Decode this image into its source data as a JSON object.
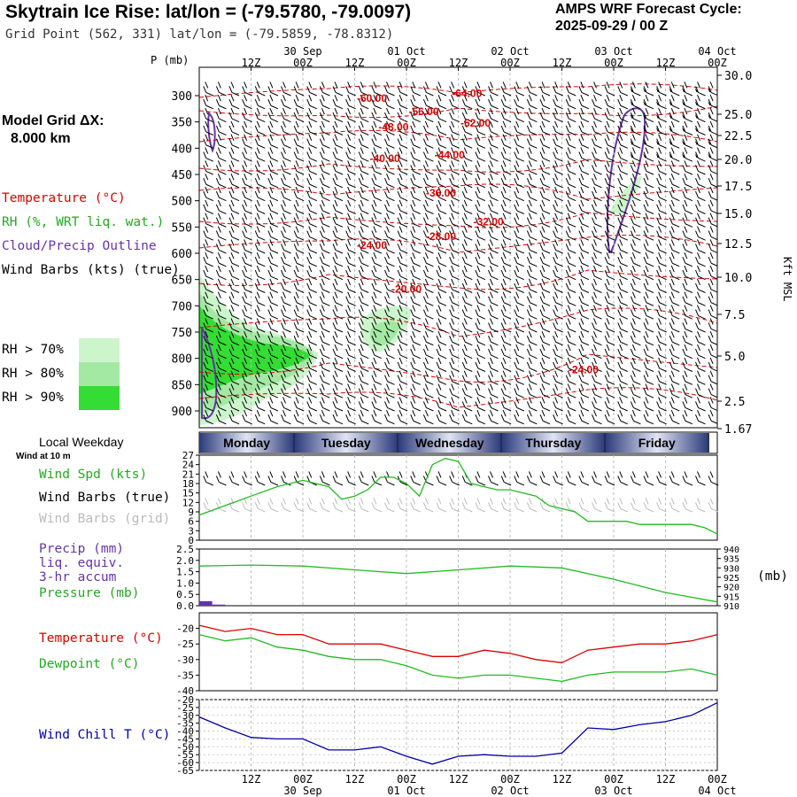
{
  "header": {
    "title": "Skytrain Ice Rise:  lat/lon = (-79.5780, -79.0097)",
    "grid_point": "Grid Point (562, 331) lat/lon = (-79.5859, -78.8312)",
    "forecast_cycle_label": "AMPS WRF Forecast Cycle:",
    "forecast_cycle_value": "2025-09-29 / 00  Z"
  },
  "colors": {
    "temperature": "#dd0000",
    "rh_green": "#22bb22",
    "cloud_outline": "#6633aa",
    "wind_chill": "#0000aa",
    "day_bar_dark": "#2b3a7a",
    "day_bar_light": "#e0e4f4",
    "rh70": "#ccf5cc",
    "rh80": "#a3e8a3",
    "rh90": "#33dd33"
  },
  "legend": {
    "model_grid_label": "Model Grid ΔX:",
    "model_grid_value": "8.000 km",
    "temperature": "Temperature (°C)",
    "rh": "RH (%, WRT liq. wat.)",
    "cloud": "Cloud/Precip Outline",
    "wind_barbs": "Wind Barbs (kts) (true)",
    "rh_levels": [
      "RH > 70%",
      "RH > 80%",
      "RH > 90%"
    ],
    "local_weekday": "Local Weekday",
    "wind_at_10m": "Wind at 10 m",
    "wind_spd": "Wind Spd (kts)",
    "wind_barbs_true": "Wind Barbs (true)",
    "wind_barbs_grid": "Wind Barbs (grid)",
    "precip": "Precip (mm)",
    "precip_line2": "liq. equiv.",
    "precip_line3": "3-hr accum",
    "pressure": "Pressure (mb)",
    "pressure_unit": "(mb)",
    "temp2": "Temperature (°C)",
    "dewpoint": "Dewpoint (°C)",
    "wind_chill": "Wind Chill T (°C)"
  },
  "chart_data": [
    {
      "type": "line",
      "name": "time_height_section",
      "ylabel_left": "P (mb)",
      "ylabel_right": "Kft MSL",
      "pressure_ticks": [
        "300",
        "350",
        "400",
        "450",
        "500",
        "550",
        "600",
        "650",
        "700",
        "750",
        "800",
        "850",
        "900"
      ],
      "height_ticks": [
        "30.0",
        "25.0",
        "22.5",
        "20.0",
        "17.5",
        "15.0",
        "12.5",
        "10.0",
        "7.5",
        "5.0",
        "2.5",
        "1.67"
      ],
      "time_labels": [
        "12Z",
        "00Z",
        "12Z",
        "00Z",
        "12Z",
        "00Z",
        "12Z",
        "00Z",
        "12Z",
        "00Z"
      ],
      "date_labels": [
        "30 Sep",
        "01 Oct",
        "02 Oct",
        "03 Oct",
        "04 Oct"
      ],
      "x_hours": [
        0,
        120
      ],
      "temperature_contour_labels": [
        {
          "label": "-60.00",
          "hour": 40,
          "p": 305
        },
        {
          "label": "-64.00",
          "hour": 62,
          "p": 296
        },
        {
          "label": "-56.00",
          "hour": 52,
          "p": 330
        },
        {
          "label": "-52.00",
          "hour": 64,
          "p": 352
        },
        {
          "label": "-48.00",
          "hour": 45,
          "p": 360
        },
        {
          "label": "-44.00",
          "hour": 58,
          "p": 413
        },
        {
          "label": "-40.00",
          "hour": 43,
          "p": 420
        },
        {
          "label": "-36.00",
          "hour": 56,
          "p": 485
        },
        {
          "label": "-32.00",
          "hour": 67,
          "p": 540
        },
        {
          "label": "-28.00",
          "hour": 56,
          "p": 568
        },
        {
          "label": "-24.00",
          "hour": 40,
          "p": 585
        },
        {
          "label": "-20.00",
          "hour": 48,
          "p": 668
        },
        {
          "label": "-24.00",
          "hour": 89,
          "p": 822
        }
      ]
    },
    {
      "type": "bar",
      "name": "weekday_bar",
      "categories": [
        "Monday",
        "Tuesday",
        "Wednesday",
        "Thursday",
        "Friday"
      ]
    },
    {
      "type": "line",
      "name": "wind_speed",
      "ylim": [
        0,
        27
      ],
      "yticks": [
        "27",
        "24",
        "21",
        "18",
        "15",
        "12",
        "9",
        "6",
        "3",
        "0"
      ],
      "x_hours": [
        0,
        6,
        12,
        18,
        24,
        30,
        33,
        36,
        39,
        42,
        45,
        48,
        51,
        54,
        57,
        60,
        63,
        66,
        69,
        72,
        75,
        78,
        81,
        84,
        87,
        90,
        93,
        96,
        99,
        102,
        105,
        108,
        111,
        114,
        117,
        120
      ],
      "values": [
        8,
        11,
        14,
        17,
        19,
        17,
        13,
        14,
        16,
        20,
        20,
        18,
        14,
        24,
        26,
        25,
        18,
        17,
        16,
        16,
        15,
        14,
        11,
        10,
        9,
        6,
        6,
        6,
        6,
        5,
        5,
        5,
        5,
        5,
        4,
        2
      ]
    },
    {
      "type": "line",
      "name": "pressure_precip",
      "left_yticks": [
        "2.5",
        "2.0",
        "1.5",
        "1.0",
        "0.5",
        "0.0"
      ],
      "right_yticks": [
        "940",
        "935",
        "930",
        "925",
        "920",
        "915",
        "910"
      ],
      "ylim_precip": [
        0,
        2.5
      ],
      "ylim_pressure": [
        910,
        940
      ],
      "x_hours": [
        0,
        12,
        24,
        36,
        48,
        60,
        72,
        84,
        96,
        108,
        120
      ],
      "pressure": [
        931,
        931.5,
        931,
        929,
        927,
        929,
        931,
        930,
        924,
        917,
        912
      ],
      "precip": [
        {
          "hour": 0,
          "hours": 3,
          "value": 0.2
        },
        {
          "hour": 3,
          "hours": 3,
          "value": 0.05
        }
      ]
    },
    {
      "type": "line",
      "name": "temperature_dewpoint",
      "ylim": [
        -40,
        -15
      ],
      "yticks": [
        "-20",
        "-25",
        "-30",
        "-35",
        "-40"
      ],
      "x_hours": [
        0,
        6,
        12,
        18,
        24,
        30,
        36,
        42,
        48,
        54,
        60,
        66,
        72,
        78,
        84,
        90,
        96,
        102,
        108,
        114,
        120
      ],
      "temperature": [
        -19,
        -21,
        -20,
        -22,
        -22,
        -25,
        -25,
        -25,
        -27,
        -29,
        -29,
        -27,
        -28,
        -30,
        -31,
        -27,
        -26,
        -25,
        -25,
        -24,
        -22
      ],
      "dewpoint": [
        -22,
        -24,
        -23,
        -26,
        -27,
        -29,
        -30,
        -30,
        -32,
        -35,
        -36,
        -35,
        -35,
        -36,
        -37,
        -35,
        -34,
        -34,
        -34,
        -33,
        -35
      ]
    },
    {
      "type": "line",
      "name": "wind_chill",
      "ylim": [
        -65,
        -20
      ],
      "yticks": [
        "-20",
        "-25",
        "-30",
        "-35",
        "-40",
        "-45",
        "-50",
        "-55",
        "-60",
        "-65"
      ],
      "x_hours": [
        0,
        6,
        12,
        18,
        24,
        30,
        36,
        42,
        48,
        54,
        60,
        66,
        72,
        78,
        84,
        90,
        96,
        102,
        108,
        114,
        120
      ],
      "values": [
        -31,
        -38,
        -44,
        -45,
        -45,
        -52,
        -52,
        -50,
        -56,
        -61,
        -56,
        -55,
        -56,
        -56,
        -54,
        -38,
        -39,
        -36,
        -34,
        -30,
        -22
      ]
    }
  ],
  "bottom_axis": {
    "time_labels": [
      "12Z",
      "00Z",
      "12Z",
      "00Z",
      "12Z",
      "00Z",
      "12Z",
      "00Z",
      "12Z",
      "00Z"
    ],
    "date_labels": [
      "30 Sep",
      "01 Oct",
      "02 Oct",
      "03 Oct",
      "04 Oct"
    ]
  }
}
